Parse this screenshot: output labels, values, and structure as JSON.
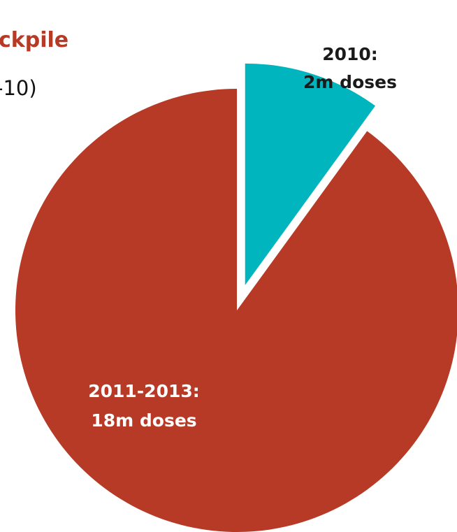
{
  "header": {
    "title_fragment": "ckpile",
    "subtitle_fragment": "-10)"
  },
  "chart_data": {
    "type": "pie",
    "slices": [
      {
        "label_line1": "2010:",
        "label_line2": "2m doses",
        "value": 2,
        "color": "#00B5BD",
        "exploded": true
      },
      {
        "label_line1": "2011-2013:",
        "label_line2": "18m doses",
        "value": 18,
        "color": "#B63A26",
        "exploded": false
      }
    ]
  }
}
